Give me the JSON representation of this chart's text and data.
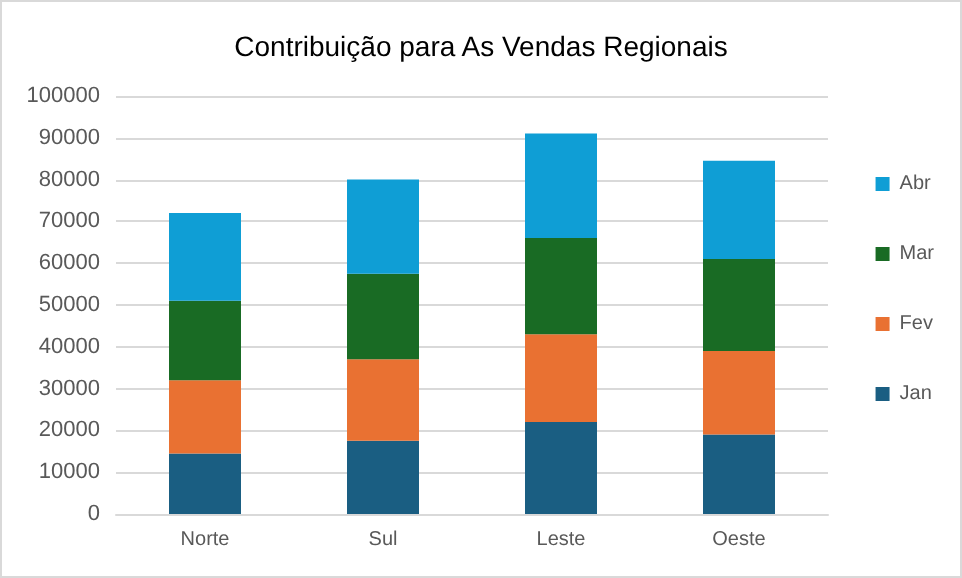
{
  "chart_data": {
    "type": "bar",
    "title": "Contribuição para As Vendas Regionais",
    "categories": [
      "Norte",
      "Sul",
      "Leste",
      "Oeste"
    ],
    "stacked": true,
    "series": [
      {
        "name": "Jan",
        "color": "#1a5e82",
        "values": [
          14500,
          17500,
          22000,
          19000
        ]
      },
      {
        "name": "Fev",
        "color": "#e97132",
        "values": [
          17500,
          19500,
          21000,
          20000
        ]
      },
      {
        "name": "Mar",
        "color": "#196b24",
        "values": [
          19000,
          20500,
          23000,
          22000
        ]
      },
      {
        "name": "Abr",
        "color": "#0f9ed5",
        "values": [
          21000,
          22500,
          25000,
          23500
        ]
      }
    ],
    "ylim": [
      0,
      100000
    ],
    "yticks": [
      0,
      10000,
      20000,
      30000,
      40000,
      50000,
      60000,
      70000,
      80000,
      90000,
      100000
    ],
    "grid": "y",
    "legend": "right"
  }
}
